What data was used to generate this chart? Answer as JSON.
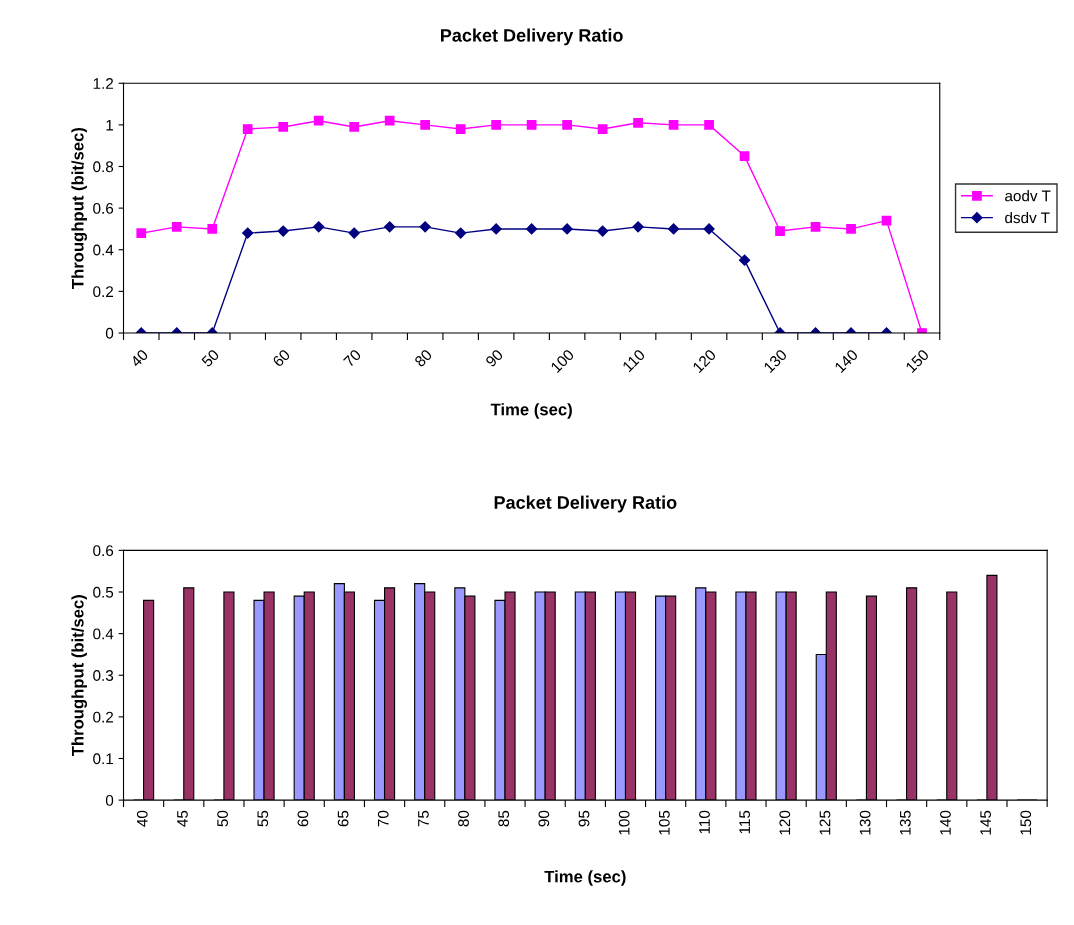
{
  "chart_data": [
    {
      "type": "line",
      "title": "Packet Delivery Ratio",
      "xlabel": "Time (sec)",
      "ylabel": "Throughput (bit/sec)",
      "categories": [
        "40",
        null,
        "50",
        null,
        "60",
        null,
        "70",
        null,
        "80",
        null,
        "90",
        null,
        "100",
        null,
        "110",
        null,
        "120",
        null,
        "130",
        null,
        "140",
        null,
        "150"
      ],
      "series": [
        {
          "name": "aodv T",
          "color": "#ff00ff",
          "marker": "square",
          "values": [
            0.48,
            0.51,
            0.5,
            0.98,
            0.99,
            1.02,
            0.99,
            1.02,
            1.0,
            0.98,
            1.0,
            1.0,
            1.0,
            0.98,
            1.01,
            1.0,
            1.0,
            0.85,
            0.49,
            0.51,
            0.5,
            0.54,
            0.0
          ]
        },
        {
          "name": "dsdv T",
          "color": "#000080",
          "marker": "diamond",
          "values": [
            0.0,
            0.0,
            0.0,
            0.48,
            0.49,
            0.51,
            0.48,
            0.51,
            0.51,
            0.48,
            0.5,
            0.5,
            0.5,
            0.49,
            0.51,
            0.5,
            0.5,
            0.35,
            0.0,
            0.0,
            0.0,
            0.0,
            null
          ]
        }
      ],
      "ylim": [
        0,
        1.2
      ],
      "yticks": [
        0,
        0.2,
        0.4,
        0.6,
        0.8,
        1,
        1.2
      ],
      "grid": false,
      "legend": "right"
    },
    {
      "type": "bar",
      "title": "Packet Delivery Ratio",
      "xlabel": "Time (sec)",
      "ylabel": "Throughput (bit/sec)",
      "categories": [
        "40",
        "45",
        "50",
        "55",
        "60",
        "65",
        "70",
        "75",
        "80",
        "85",
        "90",
        "95",
        "100",
        "105",
        "110",
        "115",
        "120",
        "125",
        "130",
        "135",
        "140",
        "145",
        "150"
      ],
      "series": [
        {
          "color": "#9999ff",
          "values": [
            0,
            0,
            0,
            0.48,
            0.49,
            0.52,
            0.48,
            0.52,
            0.51,
            0.48,
            0.5,
            0.5,
            0.5,
            0.49,
            0.51,
            0.5,
            0.5,
            0.35,
            0,
            0,
            0,
            0,
            0
          ]
        },
        {
          "color": "#993366",
          "values": [
            0.48,
            0.51,
            0.5,
            0.5,
            0.5,
            0.5,
            0.51,
            0.5,
            0.49,
            0.5,
            0.5,
            0.5,
            0.5,
            0.49,
            0.5,
            0.5,
            0.5,
            0.5,
            0.49,
            0.51,
            0.5,
            0.54,
            0
          ]
        }
      ],
      "ylim": [
        0,
        0.6
      ],
      "yticks": [
        0,
        0.1,
        0.2,
        0.3,
        0.4,
        0.5,
        0.6
      ],
      "grid": false
    }
  ]
}
